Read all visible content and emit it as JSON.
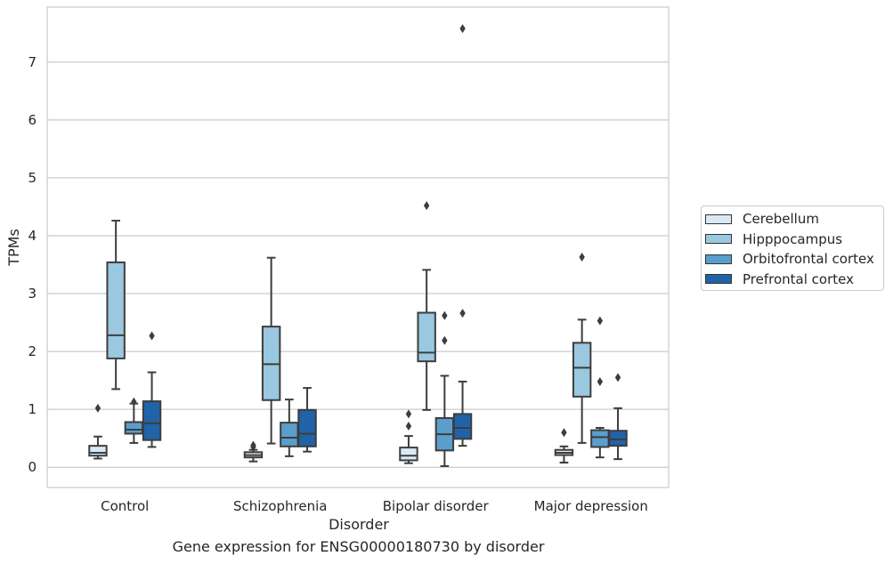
{
  "caption": "Gene expression for ENSG00000180730 by disorder",
  "chart_data": {
    "type": "box",
    "xlabel": "Disorder",
    "ylabel": "TPMs",
    "ylim": [
      -0.35,
      7.95
    ],
    "yticks": [
      0,
      1,
      2,
      3,
      4,
      5,
      6,
      7
    ],
    "grid": "horizontal",
    "legend_position": "right",
    "categories": [
      "Control",
      "Schizophrenia",
      "Bipolar disorder",
      "Major depression"
    ],
    "series": [
      {
        "name": "Cerebellum",
        "color": "#dbe9f6",
        "boxes": [
          {
            "whisker_low": 0.15,
            "q1": 0.2,
            "median": 0.25,
            "q3": 0.37,
            "whisker_high": 0.53,
            "outliers": [
              1.02
            ]
          },
          {
            "whisker_low": 0.1,
            "q1": 0.17,
            "median": 0.21,
            "q3": 0.26,
            "whisker_high": 0.3,
            "outliers": [
              0.35,
              0.38
            ]
          },
          {
            "whisker_low": 0.07,
            "q1": 0.12,
            "median": 0.2,
            "q3": 0.34,
            "whisker_high": 0.54,
            "outliers": [
              0.71,
              0.92
            ]
          },
          {
            "whisker_low": 0.08,
            "q1": 0.21,
            "median": 0.25,
            "q3": 0.3,
            "whisker_high": 0.36,
            "outliers": [
              0.6
            ]
          }
        ]
      },
      {
        "name": "Hipppocampus",
        "color": "#9ac8e0",
        "boxes": [
          {
            "whisker_low": 1.35,
            "q1": 1.88,
            "median": 2.28,
            "q3": 3.54,
            "whisker_high": 4.26,
            "outliers": []
          },
          {
            "whisker_low": 0.41,
            "q1": 1.16,
            "median": 1.78,
            "q3": 2.43,
            "whisker_high": 3.62,
            "outliers": []
          },
          {
            "whisker_low": 0.99,
            "q1": 1.83,
            "median": 1.98,
            "q3": 2.67,
            "whisker_high": 3.41,
            "outliers": [
              4.52
            ]
          },
          {
            "whisker_low": 0.42,
            "q1": 1.22,
            "median": 1.72,
            "q3": 2.15,
            "whisker_high": 2.55,
            "outliers": [
              3.63
            ]
          }
        ]
      },
      {
        "name": "Orbitofrontal cortex",
        "color": "#5a9ecc",
        "boxes": [
          {
            "whisker_low": 0.42,
            "q1": 0.58,
            "median": 0.65,
            "q3": 0.78,
            "whisker_high": 1.1,
            "outliers": [
              1.13
            ]
          },
          {
            "whisker_low": 0.19,
            "q1": 0.36,
            "median": 0.51,
            "q3": 0.77,
            "whisker_high": 1.17,
            "outliers": []
          },
          {
            "whisker_low": 0.02,
            "q1": 0.29,
            "median": 0.57,
            "q3": 0.85,
            "whisker_high": 1.58,
            "outliers": [
              2.19,
              2.62
            ]
          },
          {
            "whisker_low": 0.17,
            "q1": 0.35,
            "median": 0.52,
            "q3": 0.64,
            "whisker_high": 0.68,
            "outliers": [
              1.48,
              2.53
            ]
          }
        ]
      },
      {
        "name": "Prefrontal cortex",
        "color": "#2163a8",
        "boxes": [
          {
            "whisker_low": 0.35,
            "q1": 0.47,
            "median": 0.76,
            "q3": 1.14,
            "whisker_high": 1.64,
            "outliers": [
              2.27
            ]
          },
          {
            "whisker_low": 0.27,
            "q1": 0.36,
            "median": 0.58,
            "q3": 0.99,
            "whisker_high": 1.37,
            "outliers": []
          },
          {
            "whisker_low": 0.37,
            "q1": 0.49,
            "median": 0.68,
            "q3": 0.92,
            "whisker_high": 1.48,
            "outliers": [
              2.66,
              7.58
            ]
          },
          {
            "whisker_low": 0.14,
            "q1": 0.37,
            "median": 0.48,
            "q3": 0.63,
            "whisker_high": 1.02,
            "outliers": [
              1.55
            ]
          }
        ]
      }
    ]
  }
}
